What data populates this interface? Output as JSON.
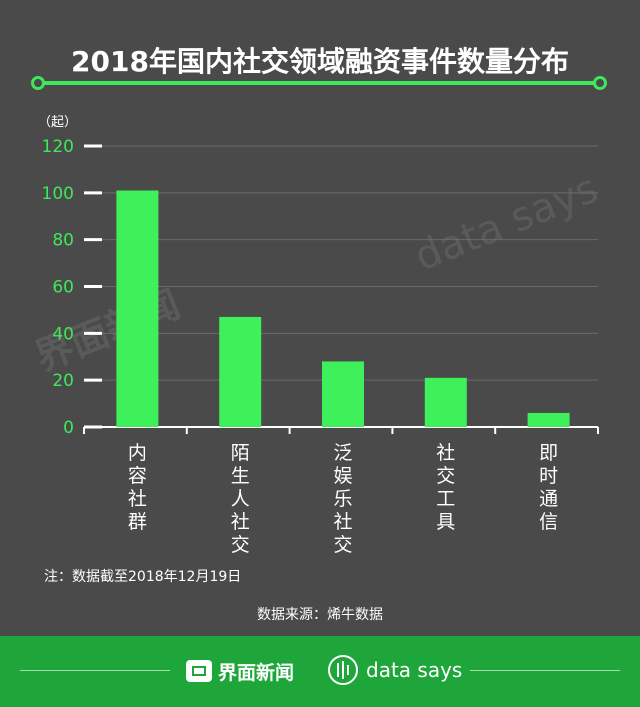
{
  "title": "2018年国内社交领域融资事件数量分布",
  "chart_data": {
    "type": "bar",
    "unit": "（起）",
    "categories": [
      "内容社群",
      "陌生人社交",
      "泛娱乐社交",
      "社交工具",
      "即时通信"
    ],
    "values": [
      101,
      47,
      28,
      21,
      6
    ],
    "ylim": [
      0,
      120
    ],
    "yticks": [
      0,
      20,
      40,
      60,
      80,
      100,
      120
    ],
    "grid": true,
    "bar_color": "#3ef05a",
    "axis_color": "#3ee85a"
  },
  "note": "注：数据截至2018年12月19日",
  "source": "数据来源：烯牛数据",
  "footer": {
    "brand": "界面新闻",
    "datasays": "data says"
  },
  "watermark": {
    "brand": "界面新闻",
    "datasays": "data says"
  },
  "colors": {
    "background": "#4a4a4a",
    "footer": "#1fa63a",
    "accent": "#3ee85a"
  }
}
